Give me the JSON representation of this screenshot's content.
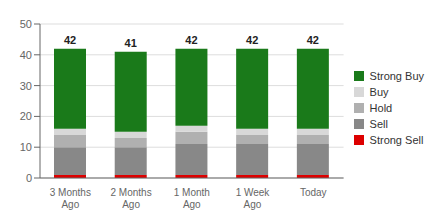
{
  "chart_data": {
    "type": "bar",
    "stacked": true,
    "grid": true,
    "legend": "right",
    "categories": [
      "3 Months\nAgo",
      "2 Months\nAgo",
      "1 Month\nAgo",
      "1 Week\nAgo",
      "Today"
    ],
    "series": [
      {
        "name": "Strong Sell",
        "color": "#dd0000",
        "values": [
          1,
          1,
          1,
          1,
          1
        ]
      },
      {
        "name": "Sell",
        "color": "#888888",
        "values": [
          9,
          9,
          10,
          10,
          10
        ]
      },
      {
        "name": "Hold",
        "color": "#b0b0b0",
        "values": [
          4,
          3,
          4,
          3,
          3
        ]
      },
      {
        "name": "Buy",
        "color": "#d8d8d8",
        "values": [
          2,
          2,
          2,
          2,
          2
        ]
      },
      {
        "name": "Strong Buy",
        "color": "#1a7a1a",
        "values": [
          26,
          26,
          25,
          26,
          26
        ]
      }
    ],
    "totals": [
      42,
      41,
      42,
      42,
      42
    ],
    "ylim": [
      0,
      50
    ],
    "yticks": [
      0,
      10,
      20,
      30,
      40,
      50
    ]
  }
}
